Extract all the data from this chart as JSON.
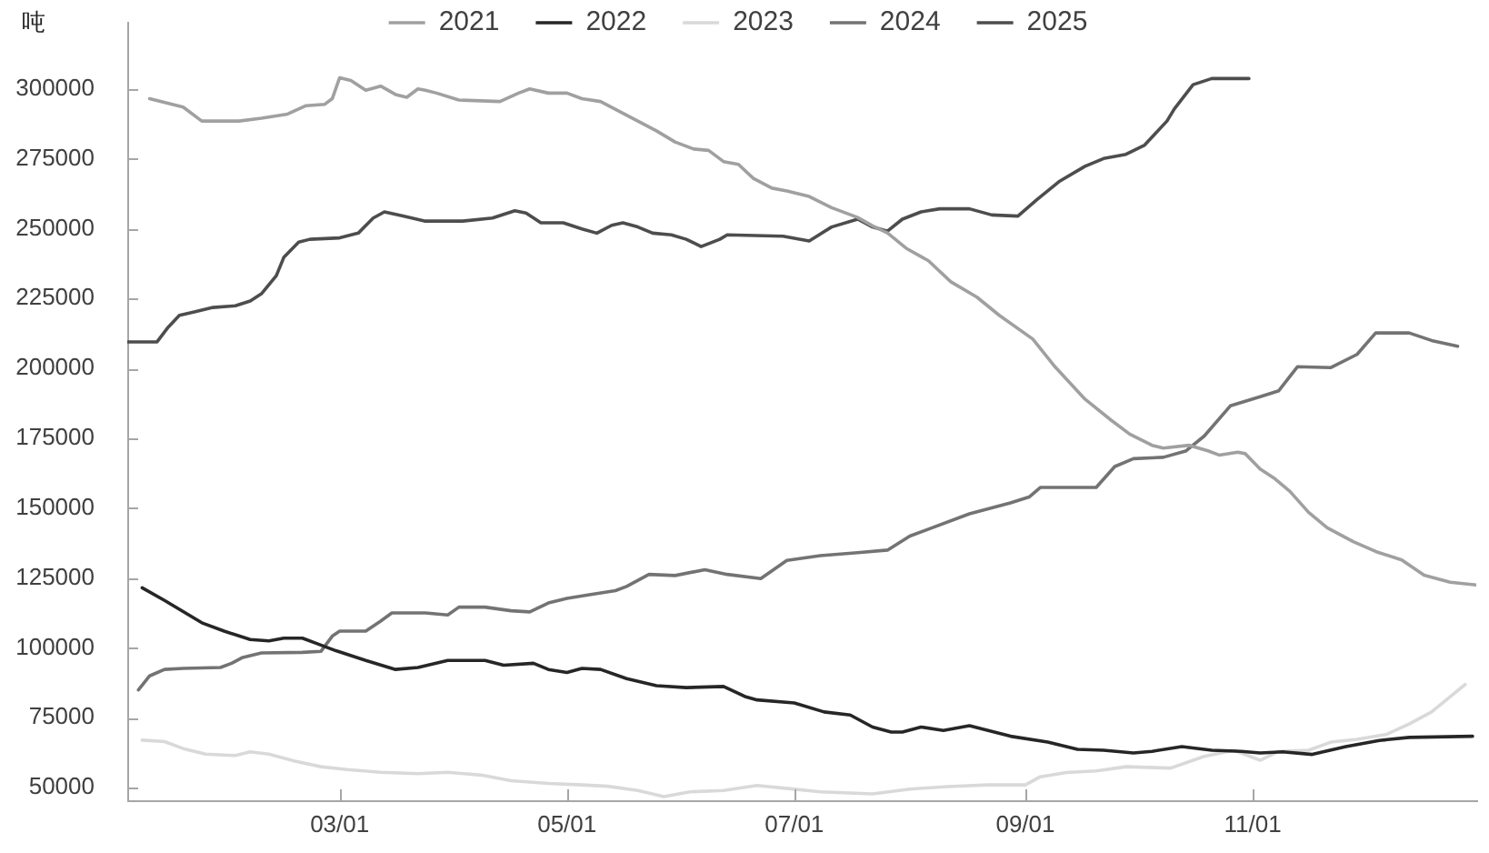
{
  "chart_data": {
    "type": "line",
    "ylabel": "吨",
    "xlim": [
      "--01-03",
      "--12-31"
    ],
    "xticks": [
      {
        "value": "--03-01",
        "label": "03/01"
      },
      {
        "value": "--05-01",
        "label": "05/01"
      },
      {
        "value": "--07-01",
        "label": "07/01"
      },
      {
        "value": "--09-01",
        "label": "09/01"
      },
      {
        "value": "--11-01",
        "label": "11/01"
      }
    ],
    "ylim": [
      45500,
      324000
    ],
    "yticks": [
      50000,
      75000,
      100000,
      125000,
      150000,
      175000,
      200000,
      225000,
      250000,
      275000,
      300000
    ],
    "legend": "top",
    "grid": false,
    "marker": "none",
    "line_style": "solid",
    "series": [
      {
        "name": "2021",
        "color": "#a0a0a0",
        "x": [
          "--01-09",
          "--01-18",
          "--01-23",
          "--02-02",
          "--02-08",
          "--02-15",
          "--02-20",
          "--02-25",
          "--02-27",
          "--03-01",
          "--03-04",
          "--03-08",
          "--03-12",
          "--03-16",
          "--03-19",
          "--03-22",
          "--03-24",
          "--03-27",
          "--04-02",
          "--04-13",
          "--04-18",
          "--04-21",
          "--04-26",
          "--05-01",
          "--05-05",
          "--05-10",
          "--05-15",
          "--05-20",
          "--05-25",
          "--05-30",
          "--06-04",
          "--06-08",
          "--06-12",
          "--06-16",
          "--06-20",
          "--06-25",
          "--06-29",
          "--07-05",
          "--07-11",
          "--07-18",
          "--07-22",
          "--07-26",
          "--07-31",
          "--08-06",
          "--08-12",
          "--08-19",
          "--08-25",
          "--09-03",
          "--09-09",
          "--09-17",
          "--09-24",
          "--09-29",
          "--10-05",
          "--10-08",
          "--10-15",
          "--10-20",
          "--10-23",
          "--10-28",
          "--10-30",
          "--11-03",
          "--11-07",
          "--11-11",
          "--11-16",
          "--11-21",
          "--11-28",
          "--12-04",
          "--12-11",
          "--12-17",
          "--12-24",
          "--12-31"
        ],
        "values": [
          296500,
          293500,
          288500,
          288500,
          289500,
          291000,
          294000,
          294500,
          296500,
          304000,
          303000,
          299500,
          301000,
          298000,
          297000,
          300000,
          299500,
          298500,
          296000,
          295500,
          298500,
          300000,
          298500,
          298500,
          296500,
          295500,
          292000,
          288500,
          285000,
          281000,
          278500,
          278000,
          274000,
          273000,
          268000,
          264500,
          263500,
          261500,
          257500,
          254000,
          251000,
          248500,
          243000,
          238500,
          231000,
          225500,
          219000,
          210500,
          200500,
          189000,
          181500,
          176500,
          172500,
          171500,
          172500,
          170500,
          169000,
          170000,
          169500,
          164000,
          160500,
          156000,
          148500,
          143000,
          138000,
          134500,
          131500,
          126000,
          123500,
          122500
        ]
      },
      {
        "name": "2022",
        "color": "#262626",
        "x": [
          "--01-07",
          "--01-13",
          "--01-18",
          "--01-23",
          "--01-29",
          "--02-05",
          "--02-10",
          "--02-14",
          "--02-19",
          "--02-23",
          "--02-28",
          "--03-08",
          "--03-16",
          "--03-22",
          "--03-30",
          "--04-09",
          "--04-14",
          "--04-22",
          "--04-26",
          "--05-01",
          "--05-05",
          "--05-10",
          "--05-17",
          "--05-25",
          "--06-02",
          "--06-12",
          "--06-18",
          "--06-21",
          "--07-01",
          "--07-09",
          "--07-16",
          "--07-22",
          "--07-27",
          "--07-30",
          "--08-04",
          "--08-10",
          "--08-17",
          "--08-22",
          "--08-28",
          "--09-07",
          "--09-15",
          "--09-22",
          "--09-30",
          "--10-05",
          "--10-13",
          "--10-21",
          "--10-29",
          "--11-03",
          "--11-09",
          "--11-17",
          "--11-26",
          "--12-05",
          "--12-13",
          "--12-30"
        ],
        "values": [
          121500,
          117000,
          113000,
          109000,
          106000,
          103000,
          102500,
          103500,
          103500,
          101500,
          99000,
          95500,
          92300,
          93000,
          95500,
          95500,
          93800,
          94500,
          92300,
          91200,
          92700,
          92300,
          89000,
          86500,
          85800,
          86200,
          82500,
          81400,
          80300,
          77100,
          76000,
          71700,
          69900,
          69900,
          71700,
          70500,
          72200,
          70500,
          68400,
          66300,
          63700,
          63400,
          62400,
          63000,
          64700,
          63400,
          63000,
          62400,
          62800,
          61900,
          64700,
          66900,
          68000,
          68400
        ]
      },
      {
        "name": "2023",
        "color": "#d9d9d9",
        "x": [
          "--01-07",
          "--01-13",
          "--01-18",
          "--01-24",
          "--02-01",
          "--02-05",
          "--02-10",
          "--02-17",
          "--02-24",
          "--03-03",
          "--03-12",
          "--03-22",
          "--03-30",
          "--04-08",
          "--04-16",
          "--04-26",
          "--05-05",
          "--05-12",
          "--05-20",
          "--05-27",
          "--06-03",
          "--06-12",
          "--06-21",
          "--06-30",
          "--07-08",
          "--07-22",
          "--08-01",
          "--08-11",
          "--08-22",
          "--09-01",
          "--09-05",
          "--09-12",
          "--09-20",
          "--09-28",
          "--10-10",
          "--10-19",
          "--10-27",
          "--11-03",
          "--11-08",
          "--11-16",
          "--11-22",
          "--11-29",
          "--12-07",
          "--12-13",
          "--12-19",
          "--12-28"
        ],
        "values": [
          67000,
          66500,
          64000,
          62000,
          61500,
          62800,
          62000,
          59500,
          57500,
          56500,
          55500,
          55000,
          55500,
          54500,
          52500,
          51500,
          51000,
          50500,
          49000,
          46800,
          48500,
          49000,
          50800,
          49600,
          48500,
          47800,
          49500,
          50400,
          51000,
          51000,
          53900,
          55400,
          56000,
          57500,
          57000,
          61200,
          63400,
          59800,
          63000,
          63400,
          66300,
          67300,
          69100,
          72800,
          77100,
          86900
        ]
      },
      {
        "name": "2024",
        "color": "#737373",
        "x": [
          "--01-06",
          "--01-09",
          "--01-13",
          "--01-18",
          "--01-28",
          "--01-31",
          "--02-03",
          "--02-08",
          "--02-19",
          "--02-24",
          "--02-27",
          "--03-01",
          "--03-08",
          "--03-12",
          "--03-15",
          "--03-24",
          "--03-30",
          "--04-02",
          "--04-09",
          "--04-16",
          "--04-21",
          "--04-26",
          "--05-01",
          "--05-07",
          "--05-14",
          "--05-17",
          "--05-23",
          "--05-30",
          "--06-07",
          "--06-13",
          "--06-22",
          "--06-29",
          "--07-08",
          "--07-18",
          "--07-26",
          "--08-01",
          "--08-06",
          "--08-17",
          "--08-28",
          "--09-02",
          "--09-05",
          "--09-20",
          "--09-25",
          "--09-30",
          "--10-08",
          "--10-14",
          "--10-19",
          "--10-26",
          "--11-03",
          "--11-08",
          "--11-13",
          "--11-22",
          "--11-29",
          "--12-04",
          "--12-13",
          "--12-19",
          "--12-26"
        ],
        "values": [
          85000,
          90000,
          92300,
          92700,
          93000,
          94500,
          96600,
          98200,
          98400,
          98800,
          104200,
          106000,
          106000,
          109600,
          112500,
          112500,
          111800,
          114600,
          114600,
          113300,
          112900,
          116100,
          117700,
          119000,
          120500,
          122000,
          126300,
          125900,
          128000,
          126300,
          124800,
          131300,
          133000,
          134100,
          135000,
          140000,
          142500,
          148000,
          151900,
          154000,
          157400,
          157400,
          164900,
          167700,
          168200,
          170400,
          175800,
          186600,
          189900,
          192000,
          200600,
          200300,
          205000,
          212700,
          212700,
          210000,
          207900
        ]
      },
      {
        "name": "2025",
        "color": "#4d4d4d",
        "x": [
          "--01-03",
          "--01-11",
          "--01-14",
          "--01-17",
          "--01-21",
          "--01-26",
          "--02-01",
          "--02-05",
          "--02-08",
          "--02-12",
          "--02-14",
          "--02-18",
          "--02-21",
          "--03-01",
          "--03-06",
          "--03-10",
          "--03-13",
          "--03-18",
          "--03-24",
          "--04-03",
          "--04-11",
          "--04-17",
          "--04-20",
          "--04-24",
          "--04-30",
          "--05-05",
          "--05-09",
          "--05-13",
          "--05-16",
          "--05-20",
          "--05-24",
          "--05-29",
          "--06-02",
          "--06-06",
          "--06-11",
          "--06-13",
          "--06-28",
          "--07-05",
          "--07-11",
          "--07-18",
          "--07-22",
          "--07-26",
          "--07-30",
          "--08-04",
          "--08-09",
          "--08-17",
          "--08-23",
          "--08-30",
          "--09-04",
          "--09-10",
          "--09-17",
          "--09-22",
          "--09-28",
          "--10-03",
          "--10-09",
          "--10-11",
          "--10-16",
          "--10-21",
          "--10-31"
        ],
        "values": [
          209500,
          209500,
          214800,
          219000,
          220200,
          221800,
          222400,
          224100,
          226700,
          233200,
          239700,
          245200,
          246200,
          246700,
          248400,
          253800,
          256000,
          254500,
          252700,
          252700,
          253800,
          256400,
          255600,
          252100,
          252100,
          249900,
          248400,
          251200,
          252100,
          250600,
          248400,
          247800,
          246200,
          243600,
          246200,
          247800,
          247300,
          245600,
          250600,
          253400,
          250600,
          249100,
          253400,
          256000,
          257100,
          257100,
          254900,
          254500,
          260300,
          266800,
          272300,
          275100,
          276600,
          279900,
          288500,
          292900,
          301500,
          303700,
          303700
        ]
      }
    ]
  }
}
